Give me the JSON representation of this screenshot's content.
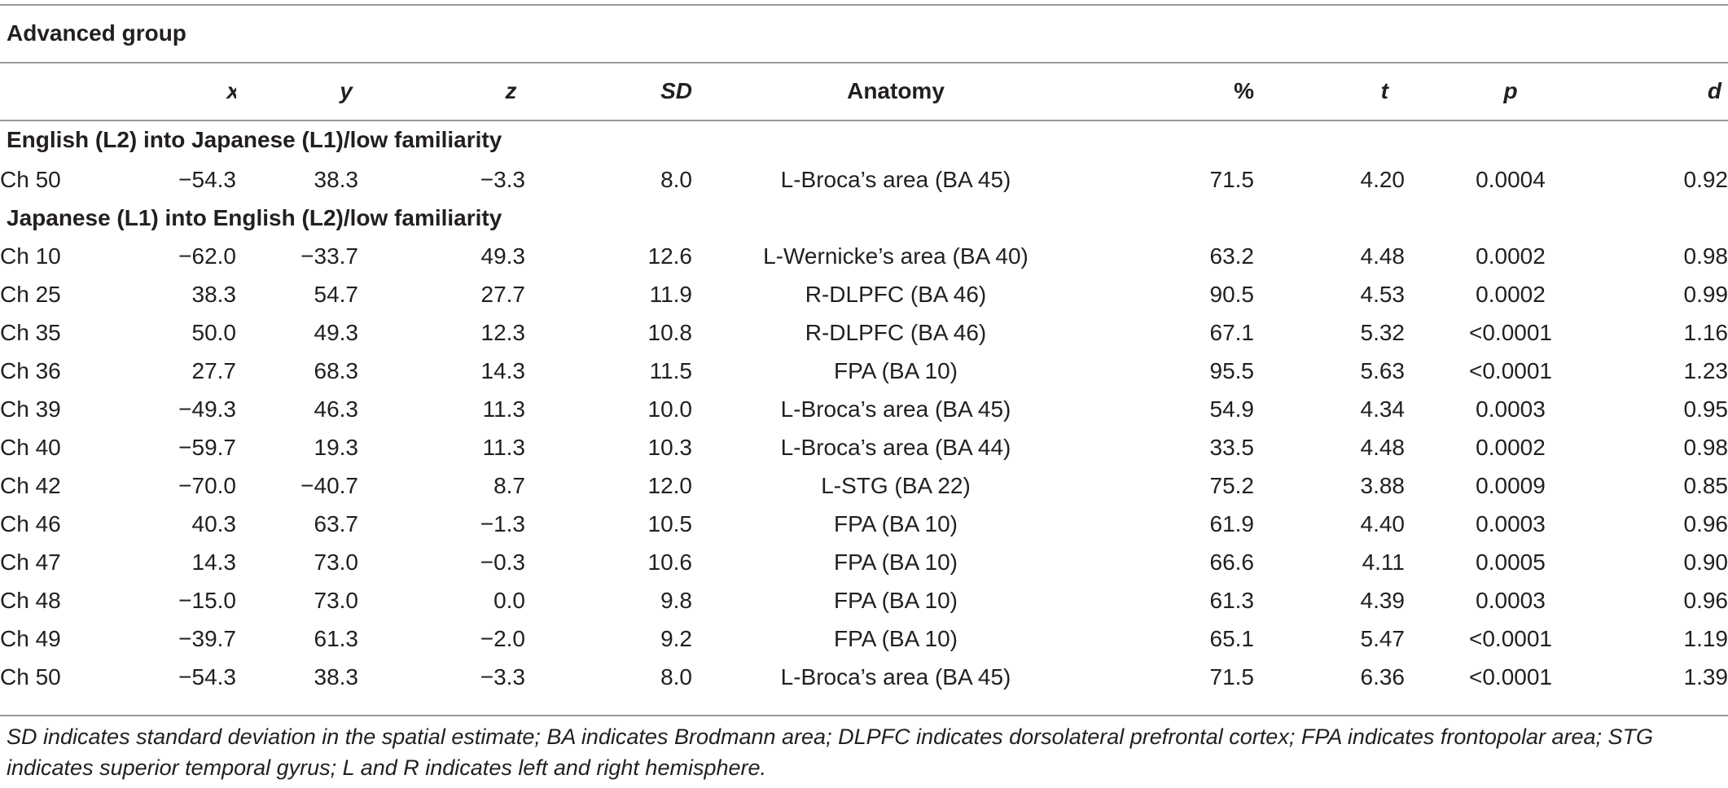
{
  "group_title": "Advanced group",
  "columns": {
    "channel": "",
    "x": "x",
    "y": "y",
    "z": "z",
    "sd": "SD",
    "anatomy": "Anatomy",
    "percent": "%",
    "t": "t",
    "p": "p",
    "d": "d"
  },
  "sections": [
    {
      "title": "English (L2) into Japanese (L1)/low familiarity",
      "rows": [
        {
          "ch": "Ch 50",
          "x": "−54.3",
          "y": "38.3",
          "z": "−3.3",
          "sd": "8.0",
          "anatomy": "L-Broca’s area (BA 45)",
          "percent": "71.5",
          "t": "4.20",
          "p": "0.0004",
          "d": "0.92"
        }
      ]
    },
    {
      "title": "Japanese (L1) into English (L2)/low familiarity",
      "rows": [
        {
          "ch": "Ch 10",
          "x": "−62.0",
          "y": "−33.7",
          "z": "49.3",
          "sd": "12.6",
          "anatomy": "L-Wernicke’s area (BA 40)",
          "percent": "63.2",
          "t": "4.48",
          "p": "0.0002",
          "d": "0.98"
        },
        {
          "ch": "Ch 25",
          "x": "38.3",
          "y": "54.7",
          "z": "27.7",
          "sd": "11.9",
          "anatomy": "R-DLPFC (BA 46)",
          "percent": "90.5",
          "t": "4.53",
          "p": "0.0002",
          "d": "0.99"
        },
        {
          "ch": "Ch 35",
          "x": "50.0",
          "y": "49.3",
          "z": "12.3",
          "sd": "10.8",
          "anatomy": "R-DLPFC (BA 46)",
          "percent": "67.1",
          "t": "5.32",
          "p": "<0.0001",
          "d": "1.16"
        },
        {
          "ch": "Ch 36",
          "x": "27.7",
          "y": "68.3",
          "z": "14.3",
          "sd": "11.5",
          "anatomy": "FPA (BA 10)",
          "percent": "95.5",
          "t": "5.63",
          "p": "<0.0001",
          "d": "1.23"
        },
        {
          "ch": "Ch 39",
          "x": "−49.3",
          "y": "46.3",
          "z": "11.3",
          "sd": "10.0",
          "anatomy": "L-Broca’s area (BA 45)",
          "percent": "54.9",
          "t": "4.34",
          "p": "0.0003",
          "d": "0.95"
        },
        {
          "ch": "Ch 40",
          "x": "−59.7",
          "y": "19.3",
          "z": "11.3",
          "sd": "10.3",
          "anatomy": "L-Broca’s area (BA 44)",
          "percent": "33.5",
          "t": "4.48",
          "p": "0.0002",
          "d": "0.98"
        },
        {
          "ch": "Ch 42",
          "x": "−70.0",
          "y": "−40.7",
          "z": "8.7",
          "sd": "12.0",
          "anatomy": "L-STG (BA 22)",
          "percent": "75.2",
          "t": "3.88",
          "p": "0.0009",
          "d": "0.85"
        },
        {
          "ch": "Ch 46",
          "x": "40.3",
          "y": "63.7",
          "z": "−1.3",
          "sd": "10.5",
          "anatomy": "FPA (BA 10)",
          "percent": "61.9",
          "t": "4.40",
          "p": "0.0003",
          "d": "0.96"
        },
        {
          "ch": "Ch 47",
          "x": "14.3",
          "y": "73.0",
          "z": "−0.3",
          "sd": "10.6",
          "anatomy": "FPA (BA 10)",
          "percent": "66.6",
          "t": "4.11",
          "p": "0.0005",
          "d": "0.90"
        },
        {
          "ch": "Ch 48",
          "x": "−15.0",
          "y": "73.0",
          "z": "0.0",
          "sd": "9.8",
          "anatomy": "FPA (BA 10)",
          "percent": "61.3",
          "t": "4.39",
          "p": "0.0003",
          "d": "0.96"
        },
        {
          "ch": "Ch 49",
          "x": "−39.7",
          "y": "61.3",
          "z": "−2.0",
          "sd": "9.2",
          "anatomy": "FPA (BA 10)",
          "percent": "65.1",
          "t": "5.47",
          "p": "<0.0001",
          "d": "1.19"
        },
        {
          "ch": "Ch 50",
          "x": "−54.3",
          "y": "38.3",
          "z": "−3.3",
          "sd": "8.0",
          "anatomy": "L-Broca’s area (BA 45)",
          "percent": "71.5",
          "t": "6.36",
          "p": "<0.0001",
          "d": "1.39"
        }
      ]
    }
  ],
  "footnote": "SD indicates standard deviation in the spatial estimate; BA indicates Brodmann area; DLPFC indicates dorsolateral prefrontal cortex; FPA indicates frontopolar area; STG indicates superior temporal gyrus; L and R indicates left and right hemisphere."
}
